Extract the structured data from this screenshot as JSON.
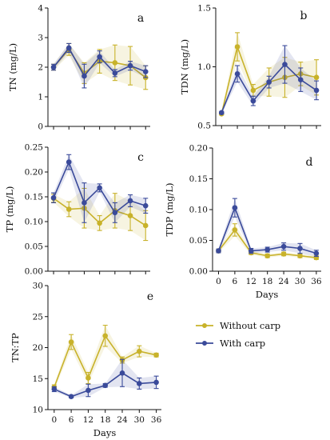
{
  "colors": {
    "without": "#c8b22a",
    "with": "#3a4a9a",
    "axis": "#111111"
  },
  "legend": [
    {
      "series": "without",
      "label": "Without carp"
    },
    {
      "series": "with",
      "label": "With carp"
    }
  ],
  "chart_data": [
    {
      "panel": "a",
      "type": "line",
      "ylabel": "TN (mg/L)",
      "xlabel": "",
      "x": [
        0,
        6,
        12,
        18,
        24,
        30,
        36
      ],
      "ylim": [
        0,
        4
      ],
      "yticks": [
        0,
        1,
        2,
        3,
        4
      ],
      "ytick_labels": [
        "0",
        "1",
        "2",
        "3",
        "4"
      ],
      "xtick_labels": [
        "",
        "",
        "",
        "",
        "",
        "",
        ""
      ],
      "grid": false,
      "series": [
        {
          "key": "without",
          "name": "Without carp",
          "values": [
            2.0,
            2.6,
            1.8,
            2.2,
            2.15,
            2.05,
            1.65
          ],
          "errors": [
            0.1,
            0.2,
            0.35,
            0.4,
            0.6,
            0.65,
            0.4
          ]
        },
        {
          "key": "with",
          "name": "With carp",
          "values": [
            2.0,
            2.65,
            1.7,
            2.35,
            1.8,
            2.05,
            1.85
          ],
          "errors": [
            0.1,
            0.15,
            0.4,
            0.2,
            0.12,
            0.15,
            0.2
          ]
        }
      ]
    },
    {
      "panel": "b",
      "type": "line",
      "ylabel": "TDN (mg/L)",
      "xlabel": "",
      "x": [
        0,
        6,
        12,
        18,
        24,
        30,
        36
      ],
      "ylim": [
        0.5,
        1.5
      ],
      "yticks": [
        0.5,
        1.0,
        1.5
      ],
      "ytick_labels": [
        "0.5",
        "1.0",
        "1.5"
      ],
      "xtick_labels": [
        "",
        "",
        "",
        "",
        "",
        "",
        ""
      ],
      "grid": false,
      "series": [
        {
          "key": "without",
          "name": "Without carp",
          "values": [
            0.6,
            1.17,
            0.8,
            0.87,
            0.91,
            0.94,
            0.91
          ],
          "errors": [
            0.01,
            0.12,
            0.05,
            0.12,
            0.17,
            0.1,
            0.15
          ]
        },
        {
          "key": "with",
          "name": "With carp",
          "values": [
            0.61,
            0.94,
            0.71,
            0.87,
            1.02,
            0.89,
            0.8
          ],
          "errors": [
            0.01,
            0.07,
            0.04,
            0.05,
            0.16,
            0.1,
            0.08
          ]
        }
      ]
    },
    {
      "panel": "c",
      "type": "line",
      "ylabel": "TP (mg/L)",
      "xlabel": "",
      "x": [
        0,
        6,
        12,
        18,
        24,
        30,
        36
      ],
      "ylim": [
        0,
        0.25
      ],
      "yticks": [
        0,
        0.05,
        0.1,
        0.15,
        0.2,
        0.25
      ],
      "ytick_labels": [
        "0.00",
        "0.05",
        "0.10",
        "0.15",
        "0.20",
        "0.25"
      ],
      "xtick_labels": [
        "",
        "",
        "",
        "",
        "",
        "",
        ""
      ],
      "grid": false,
      "series": [
        {
          "key": "without",
          "name": "Without carp",
          "values": [
            0.147,
            0.125,
            0.127,
            0.097,
            0.122,
            0.112,
            0.092
          ],
          "errors": [
            0.008,
            0.015,
            0.04,
            0.015,
            0.035,
            0.03,
            0.03
          ]
        },
        {
          "key": "with",
          "name": "With carp",
          "values": [
            0.148,
            0.22,
            0.138,
            0.168,
            0.118,
            0.142,
            0.132
          ],
          "errors": [
            0.01,
            0.015,
            0.04,
            0.008,
            0.02,
            0.012,
            0.015
          ]
        }
      ]
    },
    {
      "panel": "d",
      "type": "line",
      "ylabel": "TDP (mg/L)",
      "xlabel": "Days",
      "x": [
        0,
        6,
        12,
        18,
        24,
        30,
        36
      ],
      "ylim": [
        0,
        0.2
      ],
      "yticks": [
        0,
        0.05,
        0.1,
        0.15,
        0.2
      ],
      "ytick_labels": [
        "0.00",
        "0.05",
        "0.10",
        "0.15",
        "0.20"
      ],
      "xtick_labels": [
        "0",
        "6",
        "12",
        "18",
        "24",
        "30",
        "36"
      ],
      "grid": false,
      "series": [
        {
          "key": "without",
          "name": "Without carp",
          "values": [
            0.033,
            0.067,
            0.03,
            0.025,
            0.028,
            0.025,
            0.022
          ],
          "errors": [
            0.003,
            0.01,
            0.003,
            0.003,
            0.003,
            0.003,
            0.003
          ]
        },
        {
          "key": "with",
          "name": "With carp",
          "values": [
            0.033,
            0.103,
            0.033,
            0.035,
            0.04,
            0.037,
            0.029
          ],
          "errors": [
            0.003,
            0.015,
            0.004,
            0.004,
            0.006,
            0.008,
            0.005
          ]
        }
      ]
    },
    {
      "panel": "e",
      "type": "line",
      "ylabel": "TN:TP",
      "xlabel": "Days",
      "x": [
        0,
        6,
        12,
        18,
        24,
        30,
        36
      ],
      "ylim": [
        10,
        30
      ],
      "yticks": [
        10,
        15,
        20,
        25,
        30
      ],
      "ytick_labels": [
        "10",
        "15",
        "20",
        "25",
        "30"
      ],
      "xtick_labels": [
        "0",
        "6",
        "12",
        "18",
        "24",
        "30",
        "36"
      ],
      "grid": false,
      "series": [
        {
          "key": "without",
          "name": "Without carp",
          "values": [
            13.6,
            20.9,
            15.1,
            21.9,
            18.0,
            19.4,
            18.8
          ],
          "errors": [
            0.4,
            1.2,
            0.9,
            1.7,
            0.5,
            0.9,
            0.3
          ]
        },
        {
          "key": "with",
          "name": "With carp",
          "values": [
            13.3,
            12.1,
            13.1,
            13.9,
            15.9,
            14.2,
            14.4
          ],
          "errors": [
            0.4,
            0.2,
            1.0,
            0.3,
            2.2,
            0.9,
            1.0
          ]
        }
      ]
    }
  ]
}
